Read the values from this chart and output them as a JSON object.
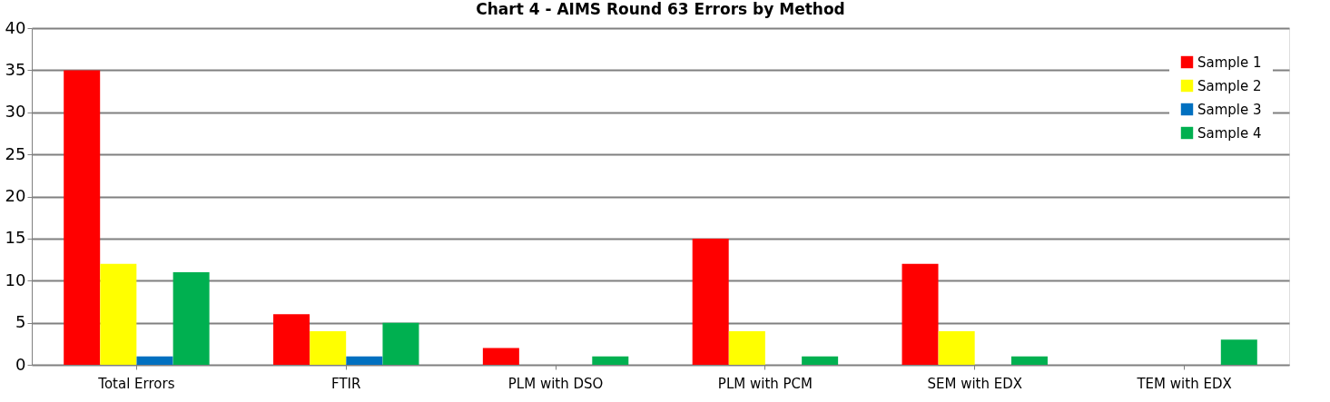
{
  "chart_data": {
    "type": "bar",
    "title": "Chart 4 - AIMS Round 63 Errors by Method",
    "categories": [
      "Total Errors",
      "FTIR",
      "PLM with DSO",
      "PLM with PCM",
      "SEM with EDX",
      "TEM with EDX"
    ],
    "series": [
      {
        "name": "Sample 1",
        "color": "#ff0000",
        "values": [
          35,
          6,
          2,
          15,
          12,
          0
        ]
      },
      {
        "name": "Sample 2",
        "color": "#ffff00",
        "values": [
          12,
          4,
          0,
          4,
          4,
          0
        ]
      },
      {
        "name": "Sample 3",
        "color": "#0070c0",
        "values": [
          1,
          1,
          0,
          0,
          0,
          0
        ]
      },
      {
        "name": "Sample 4",
        "color": "#00b050",
        "values": [
          11,
          5,
          1,
          1,
          1,
          3
        ]
      }
    ],
    "ylim": [
      0,
      40
    ],
    "yticks": [
      0,
      5,
      10,
      15,
      20,
      25,
      30,
      35,
      40
    ],
    "grid": "y",
    "legend": "top right"
  }
}
